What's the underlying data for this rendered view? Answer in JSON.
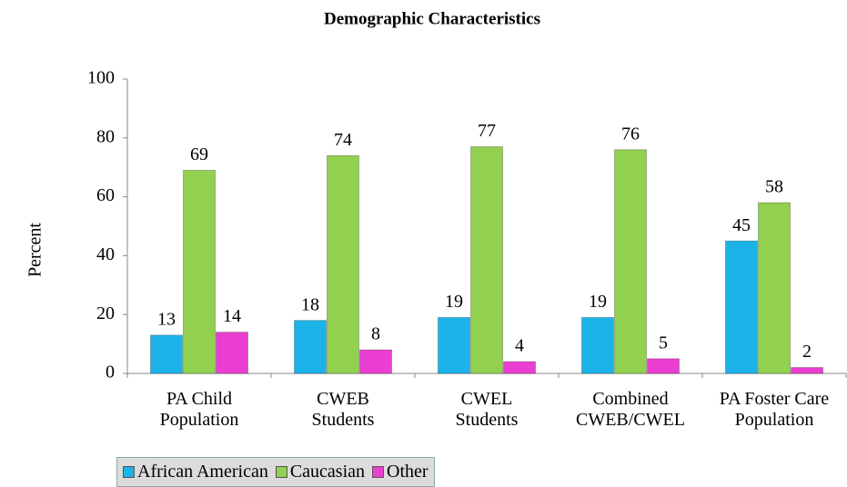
{
  "chart_data": {
    "type": "bar",
    "title": "Demographic Characteristics",
    "y_label": "Percent",
    "categories": [
      "PA Child\nPopulation",
      "CWEB\nStudents",
      "CWEL\nStudents",
      "Combined\nCWEB/CWEL",
      "PA Foster Care\nPopulation"
    ],
    "series": [
      {
        "name": "African American",
        "color": "#1cb4e8",
        "values": [
          13,
          18,
          19,
          19,
          45
        ]
      },
      {
        "name": "Caucasian",
        "color": "#92d050",
        "values": [
          69,
          74,
          77,
          76,
          58
        ]
      },
      {
        "name": "Other",
        "color": "#ea3fd0",
        "values": [
          14,
          8,
          4,
          5,
          2
        ]
      }
    ],
    "ylim": [
      0,
      100
    ],
    "yticks": [
      0,
      20,
      40,
      60,
      80,
      100
    ],
    "grid": false,
    "legend": "bottom-left"
  }
}
